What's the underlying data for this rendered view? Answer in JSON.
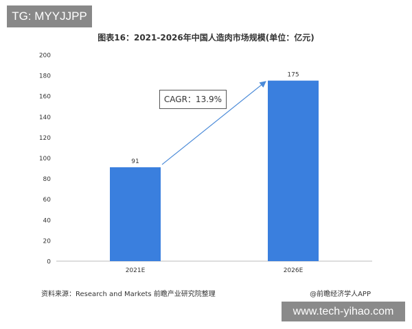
{
  "badges": {
    "top_left": "TG: MYYJJPP",
    "bottom_right": "www.tech-yihao.com"
  },
  "footer": {
    "source": "资料来源：Research and Markets 前瞻产业研究院整理",
    "credit": "@前瞻经济学人APP"
  },
  "annotation": {
    "cagr": "CAGR：13.9%"
  },
  "colors": {
    "bar": "#3a7fde",
    "arrow": "#4a8ad8",
    "axis": "#bbbbbb",
    "text": "#333333"
  },
  "chart_data": {
    "type": "bar",
    "title": "图表16：2021-2026年中国人造肉市场规模(单位：亿元)",
    "categories": [
      "2021E",
      "2026E"
    ],
    "values": [
      91,
      175
    ],
    "data_labels": [
      "91",
      "175"
    ],
    "yticks": [
      0,
      20,
      40,
      60,
      80,
      100,
      120,
      140,
      160,
      180,
      200
    ],
    "ylim": [
      0,
      200
    ],
    "xlabel": "",
    "ylabel": "",
    "grid": false,
    "legend": "none"
  }
}
